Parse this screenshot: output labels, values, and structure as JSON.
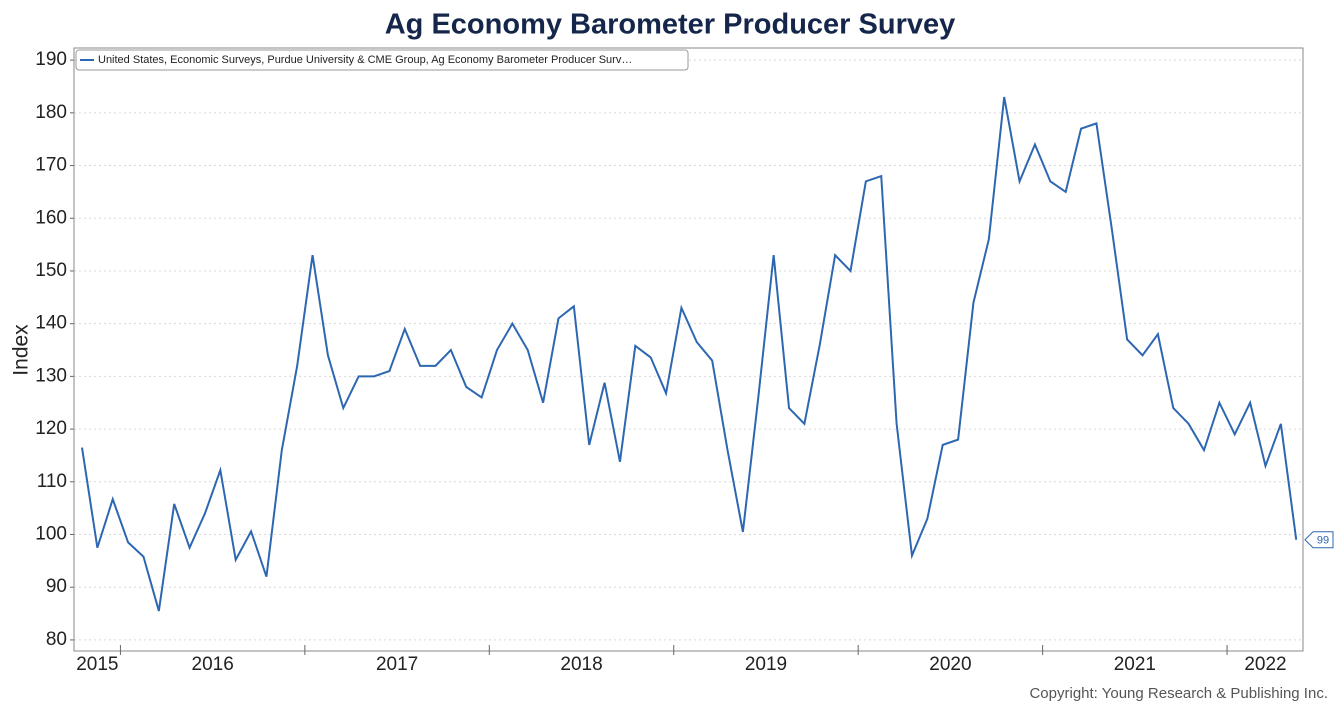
{
  "chart_data": {
    "type": "line",
    "title": "Ag Economy Barometer Producer Survey",
    "y_label": "Index",
    "copyright": "Copyright: Young Research & Publishing Inc.",
    "categories": [
      "2015",
      "2015",
      "2015",
      "2016",
      "2016",
      "2016",
      "2016",
      "2016",
      "2016",
      "2016",
      "2016",
      "2016",
      "2016",
      "2016",
      "2016",
      "2017",
      "2017",
      "2017",
      "2017",
      "2017",
      "2017",
      "2017",
      "2017",
      "2017",
      "2017",
      "2017",
      "2017",
      "2018",
      "2018",
      "2018",
      "2018",
      "2018",
      "2018",
      "2018",
      "2018",
      "2018",
      "2018",
      "2018",
      "2018",
      "2019",
      "2019",
      "2019",
      "2019",
      "2019",
      "2019",
      "2019",
      "2019",
      "2019",
      "2019",
      "2019",
      "2019",
      "2020",
      "2020",
      "2020",
      "2020",
      "2020",
      "2020",
      "2020",
      "2020",
      "2020",
      "2020",
      "2020",
      "2020",
      "2021",
      "2021",
      "2021",
      "2021",
      "2021",
      "2021",
      "2021",
      "2021",
      "2021",
      "2021",
      "2021",
      "2021",
      "2022",
      "2022",
      "2022",
      "2022",
      "2022"
    ],
    "series": [
      {
        "name": "United States, Economic Surveys, Purdue University & CME Group, Ag Economy Barometer Producer Surv…",
        "color": "#2e67b1",
        "values": [
          116.5,
          97.5,
          106.7,
          98.5,
          95.8,
          85.5,
          105.8,
          97.5,
          104,
          112.2,
          95.2,
          100.6,
          92,
          116,
          132,
          153,
          134,
          124,
          130,
          130,
          131,
          139,
          132,
          132,
          135,
          128,
          126,
          135,
          140,
          135,
          125,
          141,
          143.3,
          117,
          128.8,
          113.8,
          135.8,
          133.6,
          126.8,
          143,
          136.5,
          133,
          116,
          100.5,
          126,
          153,
          124,
          121,
          136,
          153,
          150,
          167,
          168,
          121,
          96,
          103,
          117,
          118,
          144,
          156,
          183,
          167,
          174,
          167,
          165,
          177,
          178,
          158,
          137,
          134,
          138,
          124,
          121,
          116,
          125,
          119,
          125,
          113,
          121,
          99
        ]
      }
    ],
    "ylim": [
      77.9,
      192.3
    ],
    "yticks": [
      80,
      90,
      100,
      110,
      120,
      130,
      140,
      150,
      160,
      170,
      180,
      190
    ],
    "grid": true
  }
}
